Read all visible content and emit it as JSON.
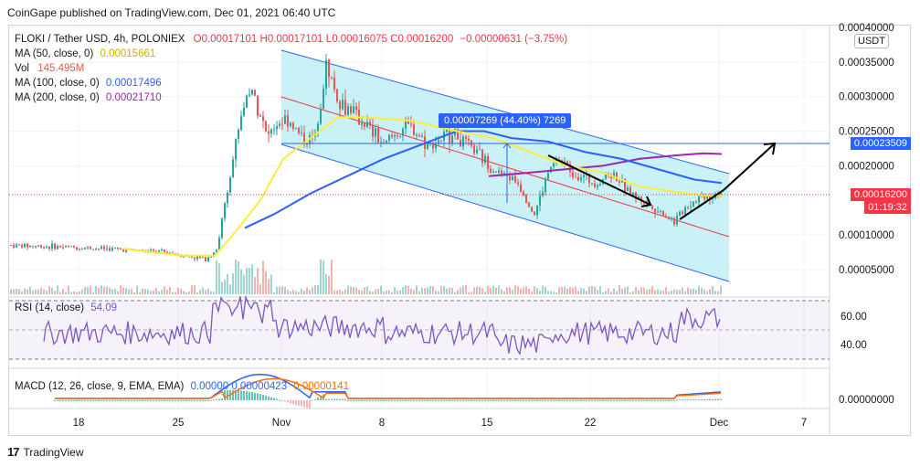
{
  "publisher": "CoinGape published on TradingView.com, Dec 01, 2021 06:40 UTC",
  "footer": {
    "brand": "TradingView"
  },
  "symbol": {
    "name": "FLOKI / Tether USD, 4h, POLONIEX",
    "O": "O0.00017101",
    "H": "H0.00017101",
    "L": "L0.00016075",
    "C": "C0.00016200",
    "change": "−0.00000631 (−3.75%)"
  },
  "legend": {
    "ma50": {
      "label": "MA (50, close, 0)",
      "value": "0.00015661",
      "color": "#ffeb3b"
    },
    "vol": {
      "label": "Vol",
      "value": "145.495M"
    },
    "ma100": {
      "label": "MA (100, close, 0)",
      "value": "0.00017496",
      "color": "#2962ff"
    },
    "ma200": {
      "label": "MA (200, close, 0)",
      "value": "0.00021710",
      "color": "#9c27b0"
    }
  },
  "rsi": {
    "label": "RSI (14, close)",
    "value": "54.09",
    "ticks": [
      "60.00",
      "40.00"
    ]
  },
  "macd": {
    "label": "MACD (12, 26, close, 9, EMA, EMA)",
    "v1": "0.00000",
    "v2": "0.00000423",
    "v3": "0.00000141",
    "tick": "0.00000000"
  },
  "price_axis": {
    "currency": "USDT",
    "ticks": [
      "0.00040000",
      "0.00035000",
      "0.00030000",
      "0.00025000",
      "0.00020000",
      "0.00010000",
      "0.00005000"
    ],
    "current": "0.00016200",
    "countdown": "01:19:32",
    "target": "0.00023509"
  },
  "measure": {
    "text": "0.00007269 (44.40%) 7269"
  },
  "time_axis": [
    "18",
    "25",
    "Nov",
    "8",
    "15",
    "22",
    "Dec",
    "7"
  ],
  "chart_data": {
    "type": "line",
    "title": "FLOKI / Tether USD, 4h, POLONIEX",
    "x": [
      "18",
      "25",
      "Nov",
      "8",
      "15",
      "22",
      "Dec",
      "7"
    ],
    "ylim": [
      3e-05,
      0.0004
    ],
    "series": [
      {
        "name": "FLOKI/USDT (approx. close)",
        "values": [
          8.5e-05,
          6.5e-05,
          0.00031,
          0.00025,
          0.00022,
          0.00016,
          0.000162,
          null
        ]
      },
      {
        "name": "MA (50, close, 0)",
        "values": [
          null,
          7e-05,
          0.00022,
          0.00027,
          0.00025,
          0.00018,
          0.00016,
          null
        ]
      },
      {
        "name": "MA (100, close, 0)",
        "values": [
          null,
          null,
          0.00013,
          0.0002,
          0.00025,
          0.00021,
          0.000175,
          null
        ]
      },
      {
        "name": "MA (200, close, 0)",
        "values": [
          null,
          null,
          null,
          null,
          0.000185,
          0.0002,
          0.000217,
          null
        ]
      }
    ],
    "levels": {
      "current": 0.000162,
      "target": 0.00023509
    },
    "rsi": {
      "range": [
        0,
        100
      ],
      "bands": [
        30,
        70
      ],
      "last": 54.09
    }
  }
}
